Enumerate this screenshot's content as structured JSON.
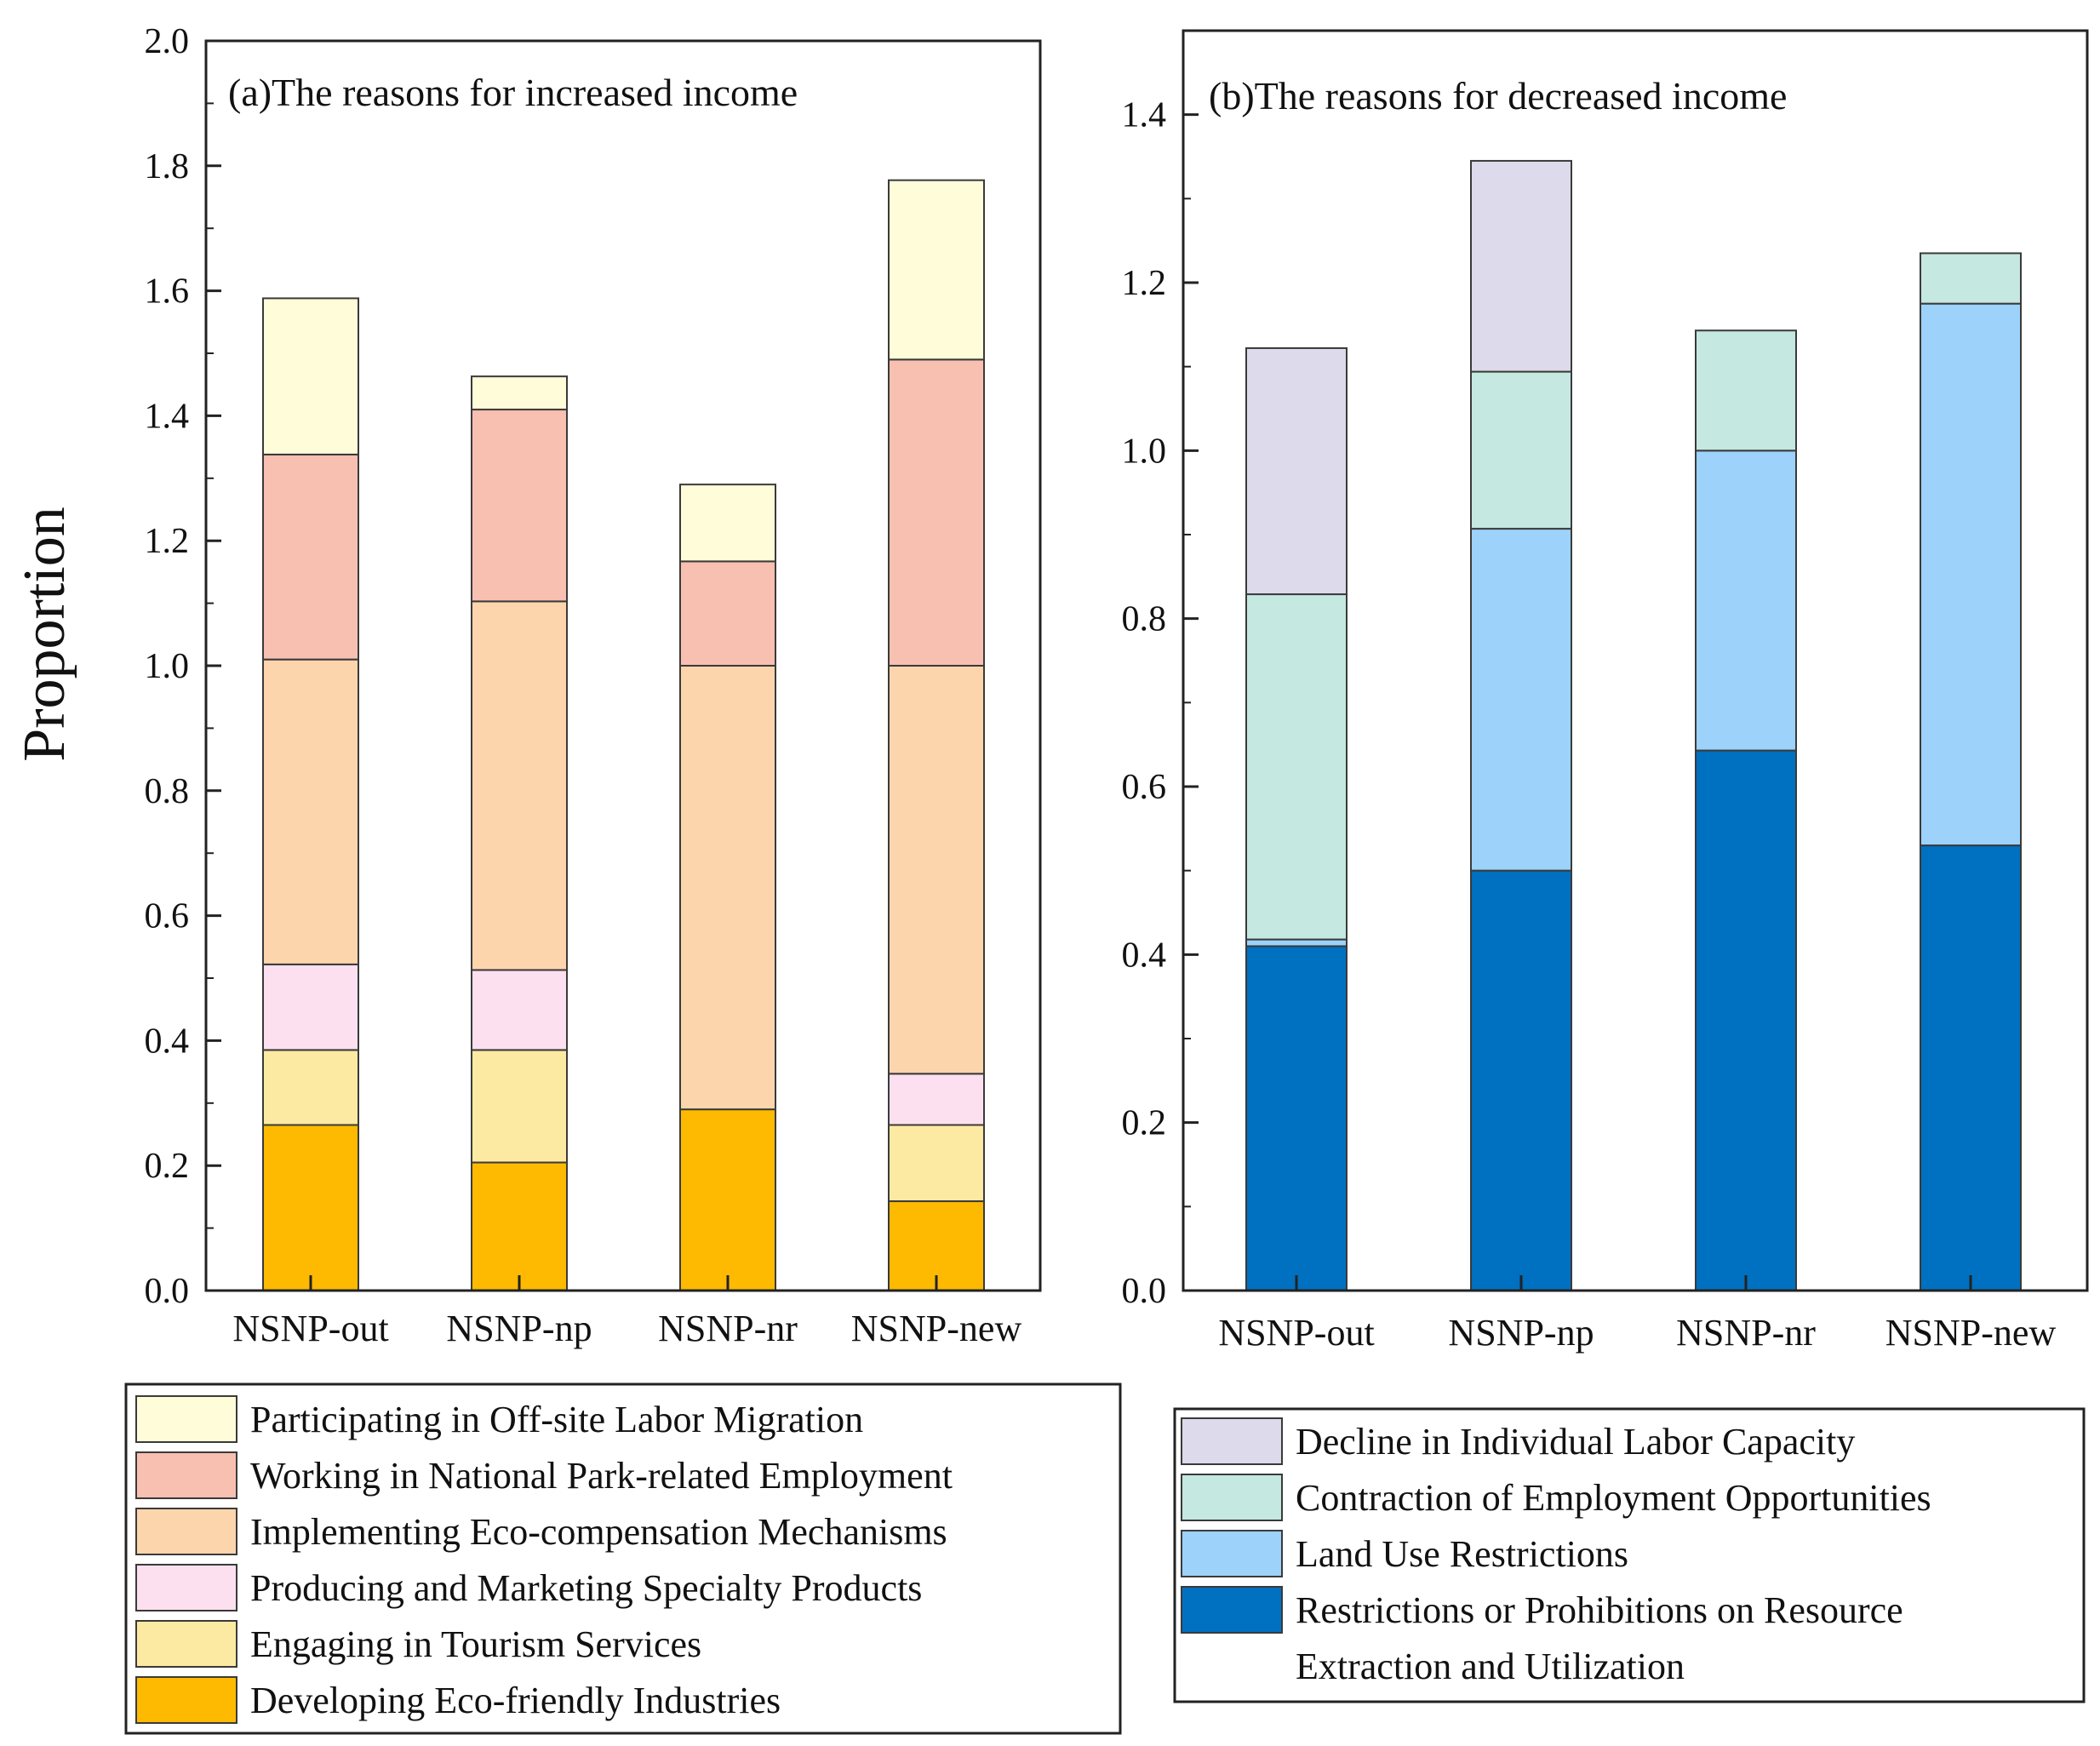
{
  "y_axis_label": "Proportion",
  "chart_data": [
    {
      "type": "bar",
      "stacked": true,
      "title": "(a)The reasons for increased income",
      "xlabel": "",
      "ylabel": "Proportion",
      "ylim": [
        0,
        2.0
      ],
      "yticks": [
        0.0,
        0.2,
        0.4,
        0.6,
        0.8,
        1.0,
        1.2,
        1.4,
        1.6,
        1.8,
        2.0
      ],
      "ytick_labels": [
        "0.0",
        "0.2",
        "0.4",
        "0.6",
        "0.8",
        "1.0",
        "1.2",
        "1.4",
        "1.6",
        "1.8",
        "2.0"
      ],
      "grid": false,
      "legend_position": "below",
      "categories": [
        "NSNP-out",
        "NSNP-np",
        "NSNP-nr",
        "NSNP-new"
      ],
      "series": [
        {
          "name": "Developing Eco-friendly Industries",
          "color": "#FDBA00",
          "values": [
            0.265,
            0.205,
            0.29,
            0.143
          ]
        },
        {
          "name": "Engaging in Tourism Services",
          "color": "#FDEAA2",
          "values": [
            0.12,
            0.18,
            0.0,
            0.122
          ]
        },
        {
          "name": "Producing and Marketing Specialty Products",
          "color": "#FCE0EF",
          "values": [
            0.137,
            0.128,
            0.0,
            0.082
          ]
        },
        {
          "name": "Implementing Eco-compensation Mechanisms",
          "color": "#FCD5AD",
          "values": [
            0.488,
            0.59,
            0.71,
            0.653
          ]
        },
        {
          "name": "Working in National Park-related Employment",
          "color": "#F8C0B1",
          "values": [
            0.328,
            0.307,
            0.167,
            0.49
          ]
        },
        {
          "name": "Participating in Off-site Labor Migration",
          "color": "#FFFCDA",
          "values": [
            0.25,
            0.053,
            0.123,
            0.287
          ]
        }
      ]
    },
    {
      "type": "bar",
      "stacked": true,
      "title": "(b)The reasons for decreased income",
      "xlabel": "",
      "ylabel": "",
      "ylim": [
        0,
        1.5
      ],
      "yticks": [
        0.0,
        0.2,
        0.4,
        0.6,
        0.8,
        1.0,
        1.2,
        1.4
      ],
      "ytick_labels": [
        "0.0",
        "0.2",
        "0.4",
        "0.6",
        "0.8",
        "1.0",
        "1.2",
        "1.4"
      ],
      "grid": false,
      "legend_position": "below",
      "categories": [
        "NSNP-out",
        "NSNP-np",
        "NSNP-nr",
        "NSNP-new"
      ],
      "series": [
        {
          "name": "Restrictions or Prohibitions on Resource Extraction and Utilization",
          "color": "#0070C0",
          "values": [
            0.41,
            0.5,
            0.643,
            0.53
          ]
        },
        {
          "name": "Land Use Restrictions",
          "color": "#9DD2FA",
          "values": [
            0.008,
            0.407,
            0.357,
            0.645
          ]
        },
        {
          "name": "Contraction of Employment Opportunities",
          "color": "#C5E8E0",
          "values": [
            0.411,
            0.187,
            0.143,
            0.06
          ]
        },
        {
          "name": "Decline in Individual Labor Capacity",
          "color": "#DDDAEB",
          "values": [
            0.293,
            0.251,
            0.0,
            0.0
          ]
        }
      ]
    }
  ],
  "legends": [
    {
      "entries": [
        {
          "label": "Participating in Off-site Labor Migration",
          "color": "#FFFCDA"
        },
        {
          "label": "Working in National Park-related Employment",
          "color": "#F8C0B1"
        },
        {
          "label": "Implementing Eco-compensation Mechanisms",
          "color": "#FCD5AD"
        },
        {
          "label": "Producing and Marketing Specialty Products",
          "color": "#FCE0EF"
        },
        {
          "label": "Engaging in Tourism Services",
          "color": "#FDEAA2"
        },
        {
          "label": "Developing Eco-friendly Industries",
          "color": "#FDBA00"
        }
      ]
    },
    {
      "entries": [
        {
          "label": "Decline in Individual Labor Capacity",
          "color": "#DDDAEB"
        },
        {
          "label": "Contraction of Employment Opportunities",
          "color": "#C5E8E0"
        },
        {
          "label": "Land Use Restrictions",
          "color": "#9DD2FA"
        },
        {
          "label": [
            "Restrictions or Prohibitions on Resource",
            "Extraction and Utilization"
          ],
          "color": "#0070C0"
        }
      ]
    }
  ]
}
